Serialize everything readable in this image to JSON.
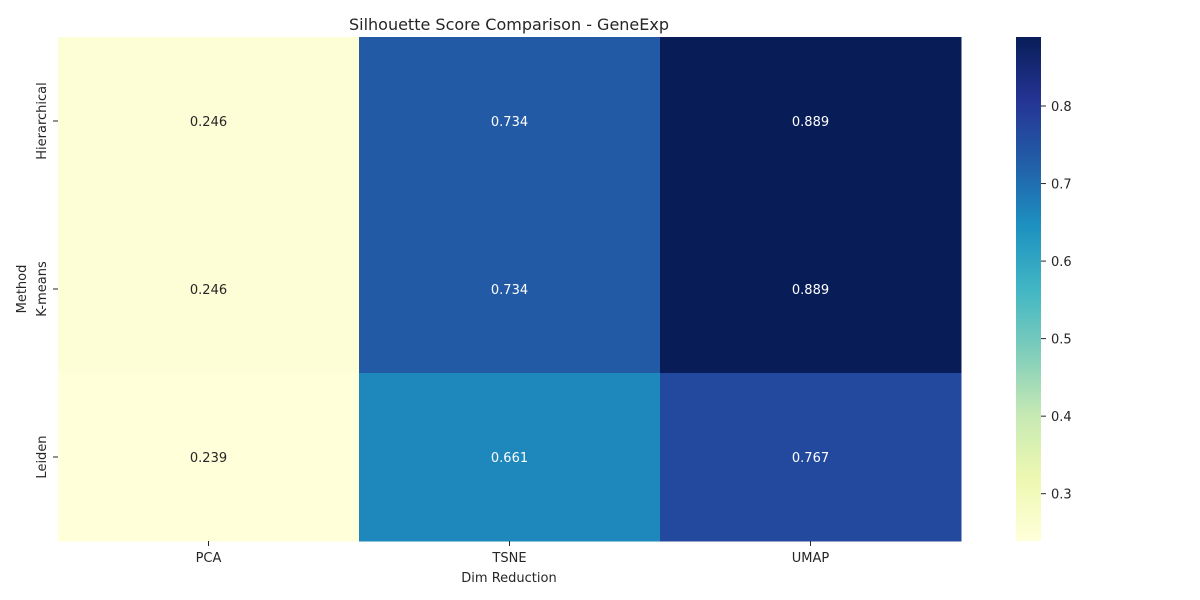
{
  "chart_data": {
    "type": "heatmap",
    "title": "Silhouette Score Comparison - GeneExp",
    "xlabel": "Dim Reduction",
    "ylabel": "Method",
    "x_categories": [
      "PCA",
      "TSNE",
      "UMAP"
    ],
    "y_categories": [
      "Hierarchical",
      "K-means",
      "Leiden"
    ],
    "values": [
      [
        0.246,
        0.734,
        0.889
      ],
      [
        0.246,
        0.734,
        0.889
      ],
      [
        0.239,
        0.661,
        0.767
      ]
    ],
    "value_labels": [
      [
        "0.246",
        "0.734",
        "0.889"
      ],
      [
        "0.246",
        "0.734",
        "0.889"
      ],
      [
        "0.239",
        "0.661",
        "0.767"
      ]
    ],
    "colorscale": "YlGnBu",
    "color_range": [
      0.239,
      0.889
    ],
    "colorbar_ticks": [
      "0.3",
      "0.4",
      "0.5",
      "0.6",
      "0.7",
      "0.8"
    ],
    "colorbar_tick_values": [
      0.3,
      0.4,
      0.5,
      0.6,
      0.7,
      0.8
    ]
  }
}
